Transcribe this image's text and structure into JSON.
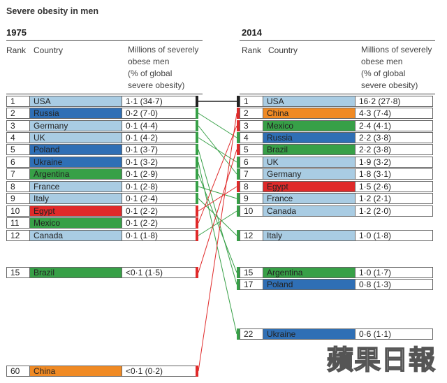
{
  "colors": {
    "light_blue": "#a9cce3",
    "dark_blue": "#2f6fb5",
    "green": "#37a047",
    "red": "#e02a2a",
    "orange": "#f08a24",
    "black": "#222222"
  },
  "title": "Severe obesity in men",
  "watermark": "蘋果日報",
  "left": {
    "year": "1975",
    "rank_header": "Rank",
    "country_header": "Country",
    "value_header": [
      "Millions of severely",
      "obese men",
      "(% of global",
      "severe obesity)"
    ]
  },
  "right": {
    "year": "2014",
    "rank_header": "Rank",
    "country_header": "Country",
    "value_header": [
      "Millions of severely",
      "obese men",
      "(% of global",
      "severe obesity)"
    ]
  },
  "chart_data": {
    "type": "table",
    "title": "Severe obesity in men",
    "columns": [
      "Rank",
      "Country",
      "Millions of severely obese men (% of global severe obesity)"
    ],
    "y1975": [
      {
        "rank": "1",
        "country": "USA",
        "value": "1·1 (34·7)",
        "fill": "light_blue",
        "flag": "black"
      },
      {
        "rank": "2",
        "country": "Russia",
        "value": "0·2 (7·0)",
        "fill": "dark_blue",
        "flag": "green"
      },
      {
        "rank": "3",
        "country": "Germany",
        "value": "0·1 (4·4)",
        "fill": "light_blue",
        "flag": "green"
      },
      {
        "rank": "4",
        "country": "UK",
        "value": "0·1 (4·2)",
        "fill": "light_blue",
        "flag": "green"
      },
      {
        "rank": "5",
        "country": "Poland",
        "value": "0·1 (3·7)",
        "fill": "dark_blue",
        "flag": "green"
      },
      {
        "rank": "6",
        "country": "Ukraine",
        "value": "0·1 (3·2)",
        "fill": "dark_blue",
        "flag": "green"
      },
      {
        "rank": "7",
        "country": "Argentina",
        "value": "0·1 (2·9)",
        "fill": "green",
        "flag": "green"
      },
      {
        "rank": "8",
        "country": "France",
        "value": "0·1 (2·8)",
        "fill": "light_blue",
        "flag": "green"
      },
      {
        "rank": "9",
        "country": "Italy",
        "value": "0·1 (2·4)",
        "fill": "light_blue",
        "flag": "green"
      },
      {
        "rank": "10",
        "country": "Egypt",
        "value": "0·1 (2·2)",
        "fill": "red",
        "flag": "red"
      },
      {
        "rank": "11",
        "country": "Mexico",
        "value": "0·1 (2·2)",
        "fill": "green",
        "flag": "red"
      },
      {
        "rank": "12",
        "country": "Canada",
        "value": "0·1 (1·8)",
        "fill": "light_blue",
        "flag": "red"
      },
      {
        "rank": "15",
        "country": "Brazil",
        "value": "<0·1 (1·5)",
        "fill": "green",
        "flag": "red"
      },
      {
        "rank": "60",
        "country": "China",
        "value": "<0·1 (0·2)",
        "fill": "orange",
        "flag": "red"
      }
    ],
    "y2014": [
      {
        "rank": "1",
        "country": "USA",
        "value": "16·2 (27·8)",
        "fill": "light_blue",
        "flag": "black"
      },
      {
        "rank": "2",
        "country": "China",
        "value": "4·3 (7·4)",
        "fill": "orange",
        "flag": "red"
      },
      {
        "rank": "3",
        "country": "Mexico",
        "value": "2·4 (4·1)",
        "fill": "green",
        "flag": "red"
      },
      {
        "rank": "4",
        "country": "Russia",
        "value": "2·2 (3·8)",
        "fill": "dark_blue",
        "flag": "green"
      },
      {
        "rank": "5",
        "country": "Brazil",
        "value": "2·2 (3·8)",
        "fill": "green",
        "flag": "red"
      },
      {
        "rank": "6",
        "country": "UK",
        "value": "1·9 (3·2)",
        "fill": "light_blue",
        "flag": "green"
      },
      {
        "rank": "7",
        "country": "Germany",
        "value": "1·8 (3·1)",
        "fill": "light_blue",
        "flag": "green"
      },
      {
        "rank": "8",
        "country": "Egypt",
        "value": "1·5 (2·6)",
        "fill": "red",
        "flag": "red"
      },
      {
        "rank": "9",
        "country": "France",
        "value": "1·2 (2·1)",
        "fill": "light_blue",
        "flag": "green"
      },
      {
        "rank": "10",
        "country": "Canada",
        "value": "1·2 (2·0)",
        "fill": "light_blue",
        "flag": "green"
      },
      {
        "rank": "12",
        "country": "Italy",
        "value": "1·0 (1·8)",
        "fill": "light_blue",
        "flag": "green"
      },
      {
        "rank": "15",
        "country": "Argentina",
        "value": "1·0 (1·7)",
        "fill": "green",
        "flag": "green"
      },
      {
        "rank": "17",
        "country": "Poland",
        "value": "0·8 (1·3)",
        "fill": "dark_blue",
        "flag": "green"
      },
      {
        "rank": "22",
        "country": "Ukraine",
        "value": "0·6 (1·1)",
        "fill": "dark_blue",
        "flag": "green"
      }
    ],
    "links": [
      {
        "country": "USA",
        "from_rank": "1",
        "to_rank": "1",
        "color": "black"
      },
      {
        "country": "Russia",
        "from_rank": "2",
        "to_rank": "4",
        "color": "green"
      },
      {
        "country": "Germany",
        "from_rank": "3",
        "to_rank": "7",
        "color": "green"
      },
      {
        "country": "UK",
        "from_rank": "4",
        "to_rank": "6",
        "color": "green"
      },
      {
        "country": "Poland",
        "from_rank": "5",
        "to_rank": "17",
        "color": "green"
      },
      {
        "country": "Ukraine",
        "from_rank": "6",
        "to_rank": "22",
        "color": "green"
      },
      {
        "country": "Argentina",
        "from_rank": "7",
        "to_rank": "15",
        "color": "green"
      },
      {
        "country": "France",
        "from_rank": "8",
        "to_rank": "9",
        "color": "green"
      },
      {
        "country": "Italy",
        "from_rank": "9",
        "to_rank": "12",
        "color": "green"
      },
      {
        "country": "Egypt",
        "from_rank": "10",
        "to_rank": "8",
        "color": "red"
      },
      {
        "country": "Mexico",
        "from_rank": "11",
        "to_rank": "3",
        "color": "red"
      },
      {
        "country": "Canada",
        "from_rank": "12",
        "to_rank": "10",
        "color": "green"
      },
      {
        "country": "Brazil",
        "from_rank": "15",
        "to_rank": "5",
        "color": "red"
      },
      {
        "country": "China",
        "from_rank": "60",
        "to_rank": "2",
        "color": "red"
      }
    ]
  }
}
